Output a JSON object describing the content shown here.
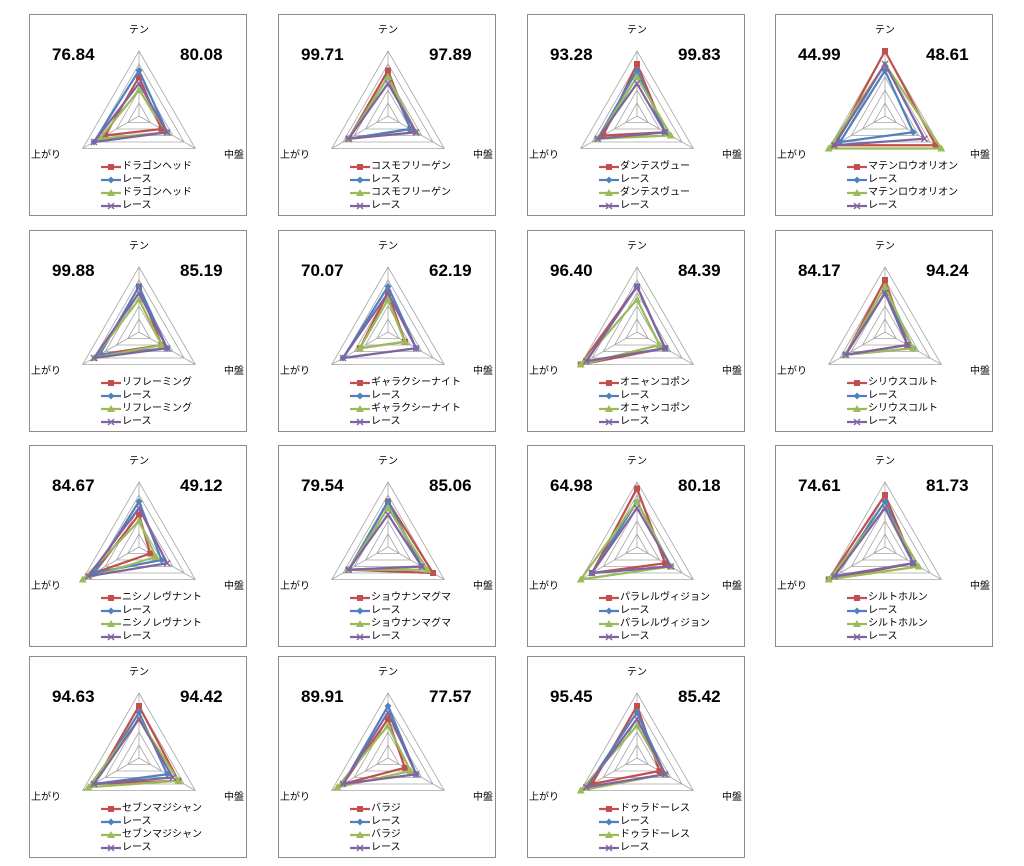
{
  "colors": {
    "horse": "#c0504d",
    "race1": "#4f81bd",
    "horse2": "#9bbb59",
    "race2": "#8064a2",
    "grid": "#a6a6a6"
  },
  "axes": [
    "テン",
    "中盤",
    "上がり"
  ],
  "chart_data": [
    {
      "type": "radar",
      "score_left": "76.84",
      "score_right": "80.08",
      "axes": [
        "テン",
        "中盤",
        "上がり"
      ],
      "series": [
        {
          "name": "ドラゴンヘッド",
          "values": [
            6,
            4,
            6
          ]
        },
        {
          "name": "レース",
          "values": [
            7,
            5,
            8
          ]
        },
        {
          "name": "ドラゴンヘッド",
          "values": [
            4,
            5,
            7
          ]
        },
        {
          "name": "レース",
          "values": [
            5,
            5,
            8
          ]
        }
      ],
      "ylim": [
        0,
        10
      ]
    },
    {
      "type": "radar",
      "score_left": "99.71",
      "score_right": "97.89",
      "axes": [
        "テン",
        "中盤",
        "上がり"
      ],
      "series": [
        {
          "name": "コスモフリーゲン",
          "values": [
            7,
            4,
            7
          ]
        },
        {
          "name": "レース",
          "values": [
            6,
            4,
            7
          ]
        },
        {
          "name": "コスモフリーゲン",
          "values": [
            6,
            5,
            7
          ]
        },
        {
          "name": "レース",
          "values": [
            5,
            5,
            7
          ]
        }
      ],
      "ylim": [
        0,
        10
      ]
    },
    {
      "type": "radar",
      "score_left": "93.28",
      "score_right": "99.83",
      "axes": [
        "テン",
        "中盤",
        "上がり"
      ],
      "series": [
        {
          "name": "ダンテスヴュー",
          "values": [
            8,
            5,
            6
          ]
        },
        {
          "name": "レース",
          "values": [
            7,
            5,
            7
          ]
        },
        {
          "name": "ダンテスヴュー",
          "values": [
            6,
            6,
            7
          ]
        },
        {
          "name": "レース",
          "values": [
            5,
            5,
            7
          ]
        }
      ],
      "ylim": [
        0,
        10
      ]
    },
    {
      "type": "radar",
      "score_left": "44.99",
      "score_right": "48.61",
      "axes": [
        "テン",
        "中盤",
        "上がり"
      ],
      "series": [
        {
          "name": "マテンロウオリオン",
          "values": [
            10,
            9,
            9
          ]
        },
        {
          "name": "レース",
          "values": [
            7,
            5,
            8
          ]
        },
        {
          "name": "マテンロウオリオン",
          "values": [
            8,
            10,
            10
          ]
        },
        {
          "name": "レース",
          "values": [
            8,
            7,
            9
          ]
        }
      ],
      "ylim": [
        0,
        10
      ]
    },
    {
      "type": "radar",
      "score_left": "99.88",
      "score_right": "85.19",
      "axes": [
        "テン",
        "中盤",
        "上がり"
      ],
      "series": [
        {
          "name": "リフレーミング",
          "values": [
            7,
            4,
            7
          ]
        },
        {
          "name": "レース",
          "values": [
            7,
            5,
            7
          ]
        },
        {
          "name": "リフレーミング",
          "values": [
            5,
            4,
            8
          ]
        },
        {
          "name": "レース",
          "values": [
            6,
            5,
            8
          ]
        }
      ],
      "ylim": [
        0,
        10
      ]
    },
    {
      "type": "radar",
      "score_left": "70.07",
      "score_right": "62.19",
      "axes": [
        "テン",
        "中盤",
        "上がり"
      ],
      "series": [
        {
          "name": "ギャラクシーナイト",
          "values": [
            6,
            3,
            5
          ]
        },
        {
          "name": "レース",
          "values": [
            7,
            5,
            8
          ]
        },
        {
          "name": "ギャラクシーナイト",
          "values": [
            5,
            3,
            5
          ]
        },
        {
          "name": "レース",
          "values": [
            6,
            5,
            8
          ]
        }
      ],
      "ylim": [
        0,
        10
      ]
    },
    {
      "type": "radar",
      "score_left": "96.40",
      "score_right": "84.39",
      "axes": [
        "テン",
        "中盤",
        "上がり"
      ],
      "series": [
        {
          "name": "オニャンコポン",
          "values": [
            7,
            5,
            10
          ]
        },
        {
          "name": "レース",
          "values": [
            7,
            5,
            9
          ]
        },
        {
          "name": "オニャンコポン",
          "values": [
            5,
            4,
            10
          ]
        },
        {
          "name": "レース",
          "values": [
            7,
            5,
            9
          ]
        }
      ],
      "ylim": [
        0,
        10
      ]
    },
    {
      "type": "radar",
      "score_left": "84.17",
      "score_right": "94.24",
      "axes": [
        "テン",
        "中盤",
        "上がり"
      ],
      "series": [
        {
          "name": "シリウスコルト",
          "values": [
            8,
            4,
            7
          ]
        },
        {
          "name": "レース",
          "values": [
            6,
            5,
            7
          ]
        },
        {
          "name": "シリウスコルト",
          "values": [
            7,
            5,
            7
          ]
        },
        {
          "name": "レース",
          "values": [
            6,
            4,
            7
          ]
        }
      ],
      "ylim": [
        0,
        10
      ]
    },
    {
      "type": "radar",
      "score_left": "84.67",
      "score_right": "49.12",
      "axes": [
        "テン",
        "中盤",
        "上がり"
      ],
      "series": [
        {
          "name": "ニシノレヴナント",
          "values": [
            5,
            2,
            8
          ]
        },
        {
          "name": "レース",
          "values": [
            7,
            4,
            8
          ]
        },
        {
          "name": "ニシノレヴナント",
          "values": [
            4,
            3,
            10
          ]
        },
        {
          "name": "レース",
          "values": [
            6,
            5,
            9
          ]
        }
      ],
      "ylim": [
        0,
        10
      ]
    },
    {
      "type": "radar",
      "score_left": "79.54",
      "score_right": "85.06",
      "axes": [
        "テン",
        "中盤",
        "上がり"
      ],
      "series": [
        {
          "name": "ショウナンマグマ",
          "values": [
            7,
            8,
            7
          ]
        },
        {
          "name": "レース",
          "values": [
            7,
            6,
            7
          ]
        },
        {
          "name": "ショウナンマグマ",
          "values": [
            6,
            7,
            7
          ]
        },
        {
          "name": "レース",
          "values": [
            5,
            6,
            7
          ]
        }
      ],
      "ylim": [
        0,
        10
      ]
    },
    {
      "type": "radar",
      "score_left": "64.98",
      "score_right": "80.18",
      "axes": [
        "テン",
        "中盤",
        "上がり"
      ],
      "series": [
        {
          "name": "パラレルヴィジョン",
          "values": [
            9,
            5,
            8
          ]
        },
        {
          "name": "レース",
          "values": [
            7,
            6,
            8
          ]
        },
        {
          "name": "パラレルヴィジョン",
          "values": [
            7,
            6,
            10
          ]
        },
        {
          "name": "レース",
          "values": [
            6,
            6,
            8
          ]
        }
      ],
      "ylim": [
        0,
        10
      ]
    },
    {
      "type": "radar",
      "score_left": "74.61",
      "score_right": "81.73",
      "axes": [
        "テン",
        "中盤",
        "上がり"
      ],
      "series": [
        {
          "name": "シルトホルン",
          "values": [
            8,
            5,
            10
          ]
        },
        {
          "name": "レース",
          "values": [
            7,
            5,
            9
          ]
        },
        {
          "name": "シルトホルン",
          "values": [
            6,
            6,
            10
          ]
        },
        {
          "name": "レース",
          "values": [
            6,
            5,
            9
          ]
        }
      ],
      "ylim": [
        0,
        10
      ]
    },
    {
      "type": "radar",
      "score_left": "94.63",
      "score_right": "94.42",
      "axes": [
        "テン",
        "中盤",
        "上がり"
      ],
      "series": [
        {
          "name": "セブンマジシャン",
          "values": [
            8,
            7,
            8
          ]
        },
        {
          "name": "レース",
          "values": [
            7,
            5,
            8
          ]
        },
        {
          "name": "セブンマジシャン",
          "values": [
            6,
            7,
            9
          ]
        },
        {
          "name": "レース",
          "values": [
            6,
            6,
            8
          ]
        }
      ],
      "ylim": [
        0,
        10
      ]
    },
    {
      "type": "radar",
      "score_left": "89.91",
      "score_right": "77.57",
      "axes": [
        "テン",
        "中盤",
        "上がり"
      ],
      "series": [
        {
          "name": "バラジ",
          "values": [
            6,
            3,
            8
          ]
        },
        {
          "name": "レース",
          "values": [
            8,
            5,
            8
          ]
        },
        {
          "name": "バラジ",
          "values": [
            5,
            4,
            9
          ]
        },
        {
          "name": "レース",
          "values": [
            7,
            5,
            8
          ]
        }
      ],
      "ylim": [
        0,
        10
      ]
    },
    {
      "type": "radar",
      "score_left": "95.45",
      "score_right": "85.42",
      "axes": [
        "テン",
        "中盤",
        "上がり"
      ],
      "series": [
        {
          "name": "ドゥラドーレス",
          "values": [
            8,
            4,
            8
          ]
        },
        {
          "name": "レース",
          "values": [
            7,
            5,
            9
          ]
        },
        {
          "name": "ドゥラドーレス",
          "values": [
            5,
            5,
            10
          ]
        },
        {
          "name": "レース",
          "values": [
            6,
            5,
            9
          ]
        }
      ],
      "ylim": [
        0,
        10
      ]
    }
  ]
}
